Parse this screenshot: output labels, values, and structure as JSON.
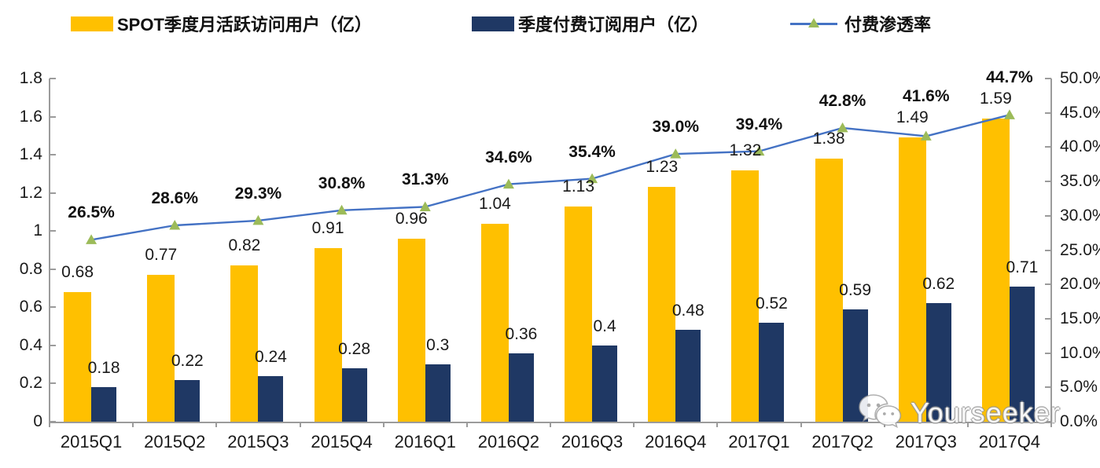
{
  "chart_data": {
    "type": "bar",
    "subtype": "bar+line combo, dual axis",
    "title": "",
    "categories": [
      "2015Q1",
      "2015Q2",
      "2015Q3",
      "2015Q4",
      "2016Q1",
      "2016Q2",
      "2016Q3",
      "2016Q4",
      "2017Q1",
      "2017Q2",
      "2017Q3",
      "2017Q4"
    ],
    "series": [
      {
        "name": "SPOT季度月活跃访问用户（亿）",
        "type": "bar",
        "axis": "left",
        "color": "#FFC000",
        "values": [
          0.68,
          0.77,
          0.82,
          0.91,
          0.96,
          1.04,
          1.13,
          1.23,
          1.32,
          1.38,
          1.49,
          1.59
        ],
        "labels": [
          "0.68",
          "0.77",
          "0.82",
          "0.91",
          "0.96",
          "1.04",
          "1.13",
          "1.23",
          "1.32",
          "1.38",
          "1.49",
          "1.59"
        ]
      },
      {
        "name": "季度付费订阅用户（亿）",
        "type": "bar",
        "axis": "left",
        "color": "#1F3864",
        "values": [
          0.18,
          0.22,
          0.24,
          0.28,
          0.3,
          0.36,
          0.4,
          0.48,
          0.52,
          0.59,
          0.62,
          0.71
        ],
        "labels": [
          "0.18",
          "0.22",
          "0.24",
          "0.28",
          "0.3",
          "0.36",
          "0.4",
          "0.48",
          "0.52",
          "0.59",
          "0.62",
          "0.71"
        ]
      },
      {
        "name": "付费渗透率",
        "type": "line",
        "axis": "right",
        "color": "#4472C4",
        "marker": "triangle",
        "marker_color": "#9CBB59",
        "values": [
          26.5,
          28.6,
          29.3,
          30.8,
          31.3,
          34.6,
          35.4,
          39.0,
          39.4,
          42.8,
          41.6,
          44.7
        ],
        "labels": [
          "26.5%",
          "28.6%",
          "29.3%",
          "30.8%",
          "31.3%",
          "34.6%",
          "35.4%",
          "39.0%",
          "39.4%",
          "42.8%",
          "41.6%",
          "44.7%"
        ]
      }
    ],
    "left_axis": {
      "min": 0,
      "max": 1.8,
      "tick_labels": [
        "0",
        "0.2",
        "0.4",
        "0.6",
        "0.8",
        "1",
        "1.2",
        "1.4",
        "1.6",
        "1.8"
      ]
    },
    "right_axis": {
      "min": 0,
      "max": 50,
      "tick_labels": [
        "0.0%",
        "5.0%",
        "10.0%",
        "15.0%",
        "20.0%",
        "25.0%",
        "30.0%",
        "35.0%",
        "40.0%",
        "45.0%",
        "50.0%"
      ]
    },
    "grid": "off",
    "legend_position": "top"
  },
  "watermark": {
    "text": "Yourseeker"
  }
}
